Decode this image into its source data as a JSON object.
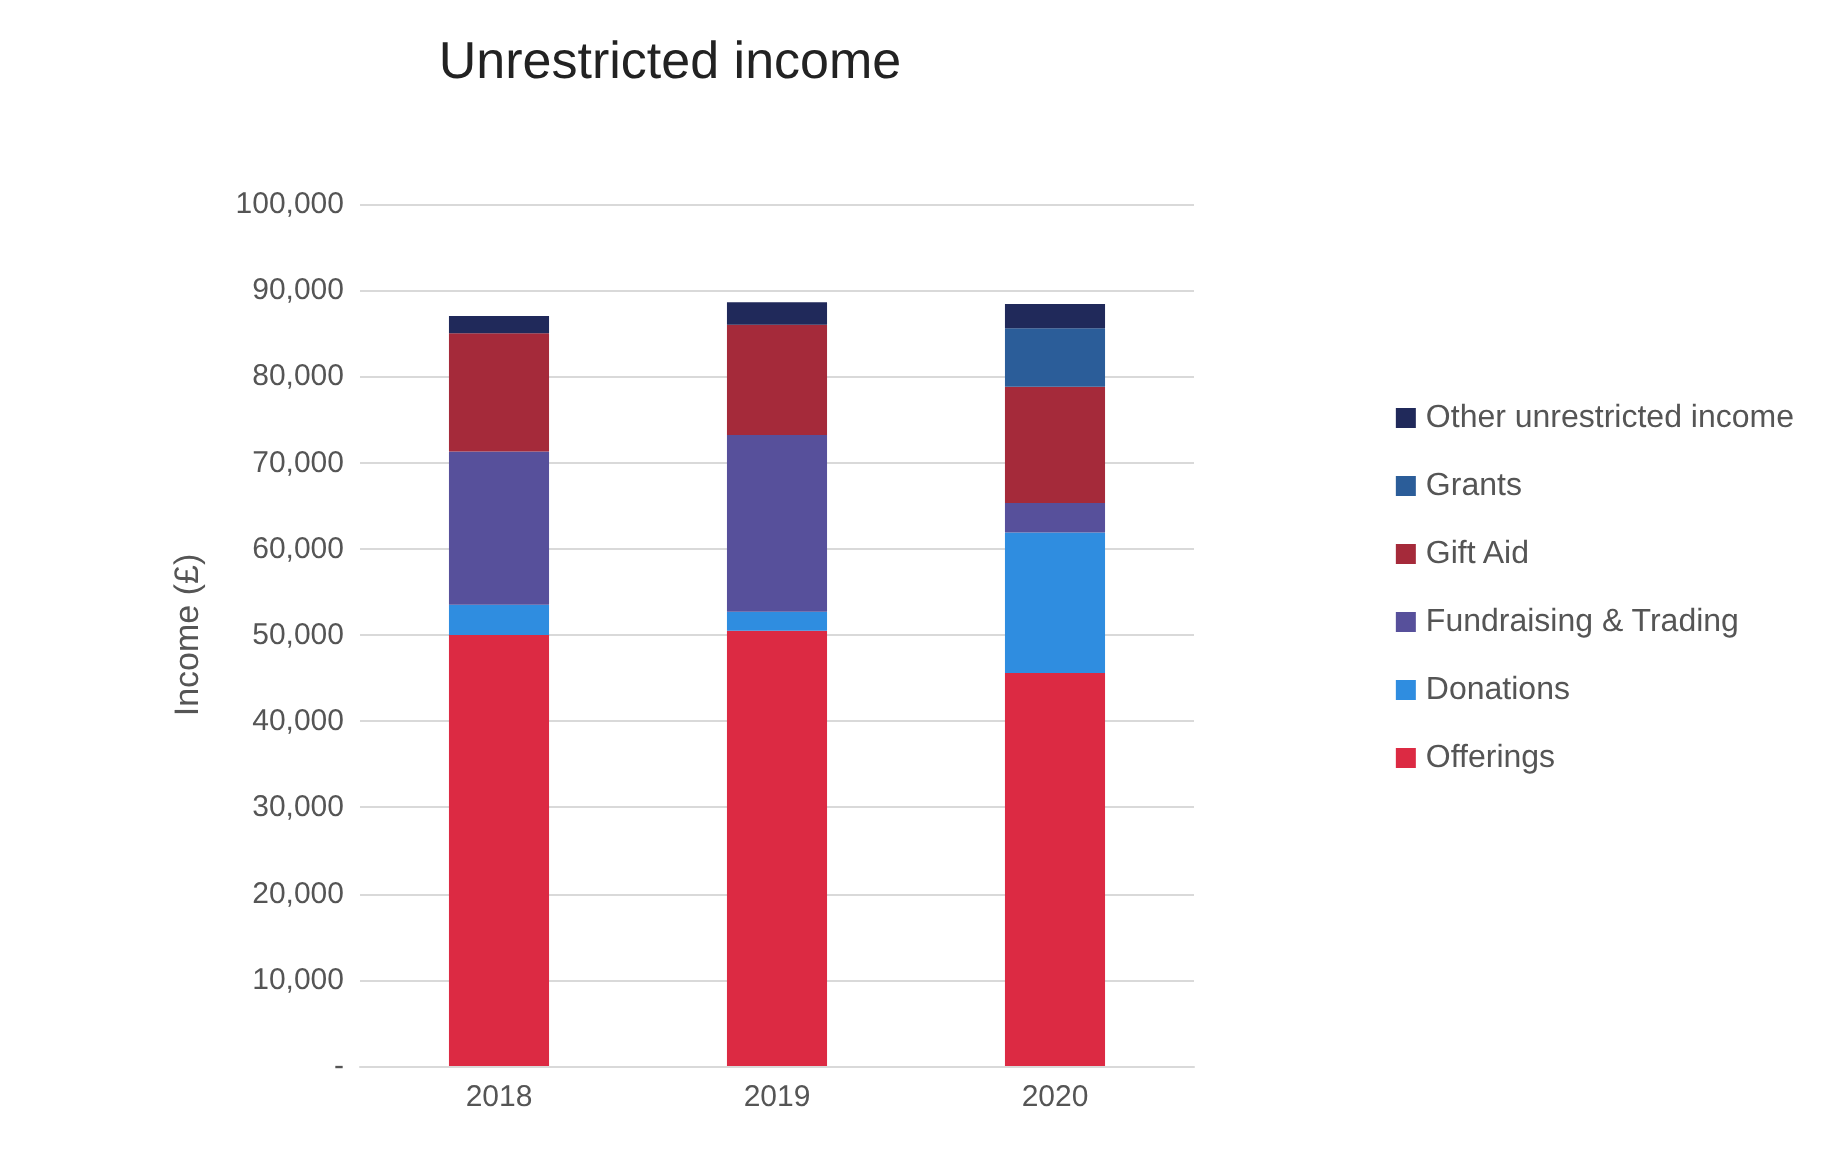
{
  "chart_data": {
    "type": "bar",
    "stacked": true,
    "title": "Unrestricted income",
    "ylabel": "Income (£)",
    "categories": [
      "2018",
      "2019",
      "2020"
    ],
    "series": [
      {
        "name": "Offerings",
        "color": "#dc2a43",
        "values": [
          50000,
          50500,
          45600
        ]
      },
      {
        "name": "Donations",
        "color": "#2f8de0",
        "values": [
          3500,
          2200,
          16300
        ]
      },
      {
        "name": "Fundraising & Trading",
        "color": "#57509b",
        "values": [
          17800,
          20500,
          3400
        ]
      },
      {
        "name": "Gift Aid",
        "color": "#a52a3a",
        "values": [
          13700,
          12800,
          13500
        ]
      },
      {
        "name": "Grants",
        "color": "#2b5d99",
        "values": [
          0,
          0,
          6800
        ]
      },
      {
        "name": "Other unrestricted income",
        "color": "#20295a",
        "values": [
          2000,
          2600,
          2800
        ]
      }
    ],
    "ylim": [
      0,
      100000
    ],
    "yticks": [
      {
        "value": 0,
        "label": "-"
      },
      {
        "value": 10000,
        "label": "10,000"
      },
      {
        "value": 20000,
        "label": "20,000"
      },
      {
        "value": 30000,
        "label": "30,000"
      },
      {
        "value": 40000,
        "label": "40,000"
      },
      {
        "value": 50000,
        "label": "50,000"
      },
      {
        "value": 60000,
        "label": "60,000"
      },
      {
        "value": 70000,
        "label": "70,000"
      },
      {
        "value": 80000,
        "label": "80,000"
      },
      {
        "value": 90000,
        "label": "90,000"
      },
      {
        "value": 100000,
        "label": "100,000"
      }
    ],
    "grid": "y",
    "legend": "right"
  }
}
